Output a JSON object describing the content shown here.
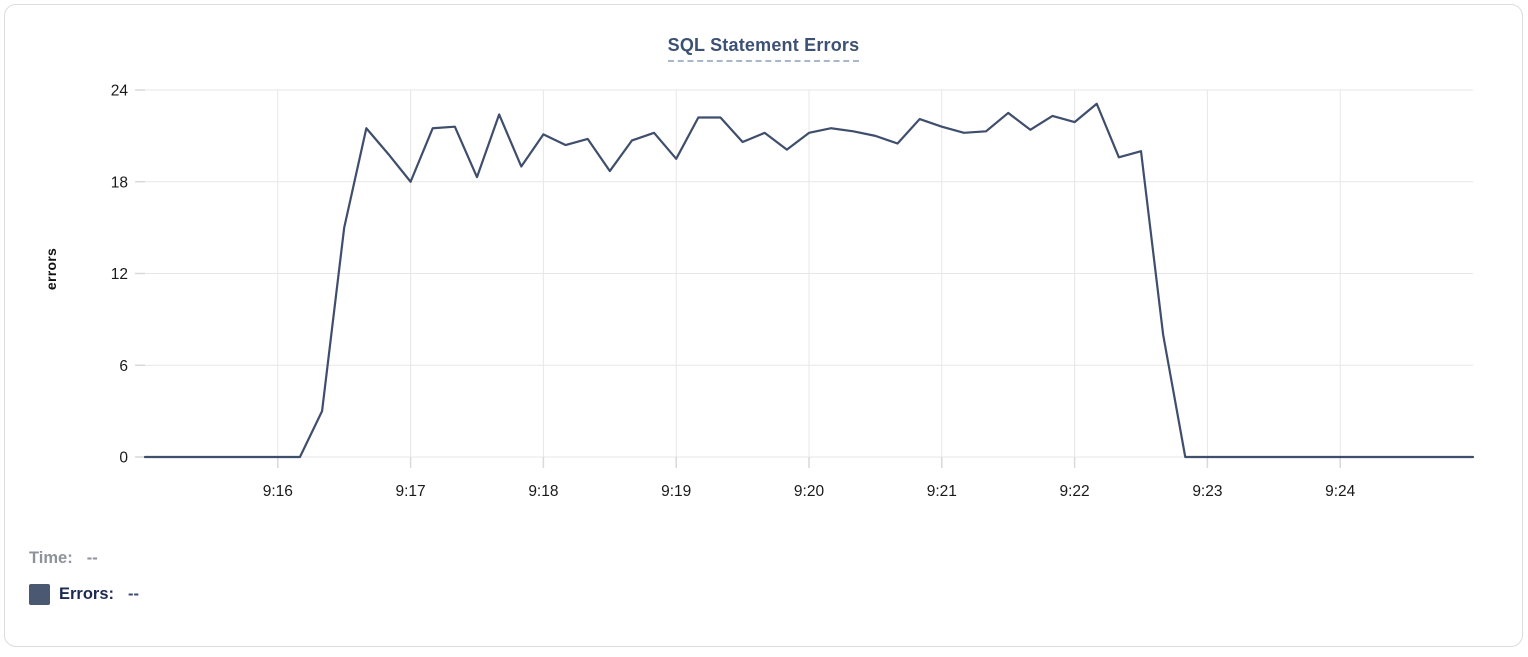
{
  "chart": {
    "title": "SQL Statement Errors",
    "y_axis_label": "errors"
  },
  "tooltip_readout": {
    "time_label": "Time:",
    "time_value": "--",
    "errors_label": "Errors:",
    "errors_value": "--"
  },
  "colors": {
    "line": "#3f4e6c",
    "title": "#3d5175",
    "title_underline": "#a9b6cc",
    "legend_swatch": "#4a5872",
    "errors_text": "#1d2b52",
    "time_text": "#8d929b",
    "gridline": "#e7e7e7"
  },
  "chart_data": {
    "type": "line",
    "title": "SQL Statement Errors",
    "xlabel": "",
    "ylabel": "errors",
    "series_name": "Errors",
    "grid": true,
    "legend_position": "bottom-left",
    "ylim": [
      0,
      24
    ],
    "y_ticks": [
      0,
      6,
      12,
      18,
      24
    ],
    "x_ticks": [
      "9:16",
      "9:17",
      "9:18",
      "9:19",
      "9:20",
      "9:21",
      "9:22",
      "9:23",
      "9:24"
    ],
    "line_color": "#3f4e6c",
    "x": [
      "9:15:00",
      "9:15:10",
      "9:15:20",
      "9:15:30",
      "9:15:40",
      "9:15:50",
      "9:16:00",
      "9:16:10",
      "9:16:20",
      "9:16:30",
      "9:16:40",
      "9:16:50",
      "9:17:00",
      "9:17:10",
      "9:17:20",
      "9:17:30",
      "9:17:40",
      "9:17:50",
      "9:18:00",
      "9:18:10",
      "9:18:20",
      "9:18:30",
      "9:18:40",
      "9:18:50",
      "9:19:00",
      "9:19:10",
      "9:19:20",
      "9:19:30",
      "9:19:40",
      "9:19:50",
      "9:20:00",
      "9:20:10",
      "9:20:20",
      "9:20:30",
      "9:20:40",
      "9:20:50",
      "9:21:00",
      "9:21:10",
      "9:21:20",
      "9:21:30",
      "9:21:40",
      "9:21:50",
      "9:22:00",
      "9:22:10",
      "9:22:20",
      "9:22:30",
      "9:22:40",
      "9:22:50",
      "9:23:00",
      "9:23:10",
      "9:23:20",
      "9:23:30",
      "9:23:40",
      "9:23:50",
      "9:24:00",
      "9:24:10",
      "9:24:20",
      "9:24:30",
      "9:24:40",
      "9:24:50",
      "9:25:00"
    ],
    "values": [
      0,
      0,
      0,
      0,
      0,
      0,
      0,
      0,
      3,
      15,
      21.5,
      19.8,
      18,
      21.5,
      21.6,
      18.3,
      22.4,
      19,
      21.1,
      20.4,
      20.8,
      18.7,
      20.7,
      21.2,
      19.5,
      22.2,
      22.2,
      20.6,
      21.2,
      20.1,
      21.2,
      21.5,
      21.3,
      21,
      20.5,
      22.1,
      21.6,
      21.2,
      21.3,
      22.5,
      21.4,
      22.3,
      21.9,
      23.1,
      19.6,
      20,
      8,
      0,
      0,
      0,
      0,
      0,
      0,
      0,
      0,
      0,
      0,
      0,
      0,
      0,
      0
    ]
  }
}
